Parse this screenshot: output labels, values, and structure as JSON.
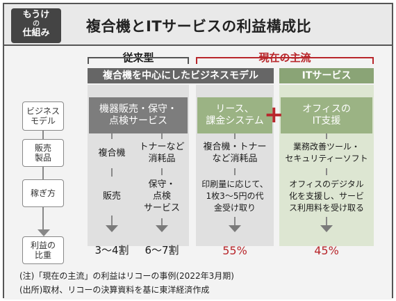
{
  "badge": {
    "line1": "もうけ",
    "line2": "の",
    "line3": "仕組み"
  },
  "title": "複合機とITサービスの利益構成比",
  "sections": {
    "conventional": "従来型",
    "current": "現在の主流"
  },
  "model_heads": {
    "copier": "複合機を中心にしたビジネスモデル",
    "it": "ITサービス"
  },
  "row_labels": {
    "business_model": "ビジネス\nモデル",
    "products": "販売\n製品",
    "earning": "稼ぎ方",
    "profit_ratio": "利益の\n比重"
  },
  "business_model": {
    "conventional": "機器販売・保守・\n点検サービス",
    "lease": "リース、\n課金システム",
    "office_it": "オフィスの\nIT支援"
  },
  "products": {
    "copier": "複合機",
    "toner": "トナーなど\n消耗品",
    "current_copier": "複合機・トナー\nなど消耗品",
    "it": "業務改善ツール・\nセキュリティーソフト"
  },
  "earning": {
    "sales": "販売",
    "maintenance": "保守・\n点検\nサービス",
    "usage": "印刷量に応じて、\n1枚3～5円の代\n金受け取り",
    "digital": "オフィスのデジタル\n化を支援し、サービ\nス利用料を受け取る"
  },
  "profit_ratio": {
    "copier": "3～4割",
    "toner": "6～7割",
    "current_copier": "55%",
    "it": "45%"
  },
  "plus_symbol": "+",
  "notes": {
    "note": "(注)「現在の主流」の利益はリコーの事例(2022年3月期)",
    "source": "(出所)取材、リコーの決算資料を基に東洋経済作成"
  },
  "colors": {
    "accent_red": "#b8262b",
    "dark_gray": "#7d7d7d",
    "green": "#9bb384"
  }
}
